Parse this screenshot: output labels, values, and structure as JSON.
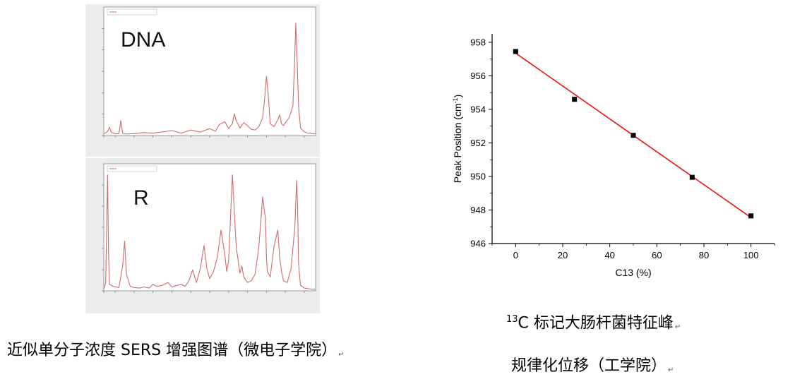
{
  "chart_data": [
    {
      "type": "line",
      "panel": "spectrum-dna",
      "annotation": "DNA",
      "color": "#d06a6a",
      "xlim": [
        640,
        1760
      ],
      "x_ticks": [
        640,
        700,
        800,
        900,
        1000,
        1100,
        1200,
        1300,
        1400,
        1500,
        1600,
        1700
      ],
      "ylim": [
        0,
        65000
      ],
      "series": [
        {
          "x": [
            640,
            660,
            670,
            680,
            700,
            720,
            730,
            740,
            760,
            800,
            850,
            900,
            950,
            1000,
            1050,
            1100,
            1150,
            1200,
            1230,
            1250,
            1280,
            1300,
            1320,
            1330,
            1340,
            1360,
            1380,
            1400,
            1420,
            1440,
            1460,
            1480,
            1490,
            1500,
            1510,
            1520,
            1540,
            1560,
            1570,
            1580,
            1590,
            1600,
            1620,
            1640,
            1650,
            1655,
            1660,
            1670,
            1680,
            1700,
            1720,
            1740,
            1760
          ],
          "y": [
            800,
            2000,
            4200,
            1600,
            900,
            1000,
            7500,
            1100,
            800,
            900,
            1500,
            1200,
            1800,
            2500,
            1200,
            2800,
            1800,
            3500,
            2200,
            5500,
            7000,
            3500,
            6000,
            11000,
            7500,
            3800,
            6500,
            5000,
            3200,
            2800,
            4500,
            9000,
            18000,
            30000,
            20000,
            6000,
            4500,
            8000,
            10500,
            6000,
            5000,
            6500,
            9000,
            15000,
            40000,
            57000,
            45000,
            15000,
            4000,
            1800,
            1200,
            1000,
            900
          ]
        }
      ]
    },
    {
      "type": "line",
      "panel": "spectrum-r",
      "annotation": "R",
      "color": "#d06a6a",
      "xlim": [
        640,
        1760
      ],
      "x_ticks": [
        640,
        700,
        800,
        900,
        1000,
        1100,
        1200,
        1300,
        1400,
        1500,
        1600,
        1700
      ],
      "ylim": [
        0,
        23000
      ],
      "series": [
        {
          "x": [
            640,
            650,
            655,
            660,
            665,
            670,
            690,
            720,
            740,
            750,
            760,
            780,
            800,
            830,
            850,
            880,
            900,
            920,
            950,
            980,
            1000,
            1050,
            1070,
            1090,
            1110,
            1130,
            1150,
            1170,
            1185,
            1200,
            1220,
            1240,
            1260,
            1280,
            1290,
            1300,
            1320,
            1340,
            1360,
            1370,
            1380,
            1390,
            1400,
            1420,
            1440,
            1460,
            1480,
            1495,
            1500,
            1505,
            1520,
            1540,
            1560,
            1570,
            1580,
            1590,
            1610,
            1630,
            1650,
            1660,
            1665,
            1670,
            1680,
            1700,
            1720,
            1740,
            1760
          ],
          "y": [
            300,
            1500,
            11000,
            21000,
            7000,
            1200,
            800,
            600,
            4500,
            9000,
            3000,
            800,
            600,
            500,
            700,
            500,
            1200,
            800,
            1000,
            1500,
            700,
            1200,
            800,
            1800,
            3800,
            1500,
            4000,
            8200,
            4000,
            2200,
            3500,
            6000,
            11000,
            6500,
            3500,
            5500,
            21000,
            8000,
            3200,
            4500,
            2500,
            2000,
            1500,
            1800,
            3000,
            8000,
            17000,
            13000,
            6000,
            3500,
            2500,
            8000,
            11000,
            6000,
            3500,
            1800,
            1500,
            4000,
            11500,
            20000,
            15000,
            5000,
            1000,
            500,
            400,
            300,
            300
          ]
        }
      ]
    },
    {
      "type": "scatter",
      "panel": "c13-shift",
      "xlabel": "C13 (%)",
      "ylabel_main": "Peak Position (cm",
      "ylabel_sup": "-1",
      "ylabel_close": ")",
      "xlim": [
        -10,
        110
      ],
      "ylim": [
        946,
        958.5
      ],
      "x_ticks": [
        0,
        20,
        40,
        60,
        80,
        100
      ],
      "y_ticks": [
        946,
        948,
        950,
        952,
        954,
        956,
        958
      ],
      "marker_color": "#000000",
      "fit_color": "#ee1111",
      "points": {
        "x": [
          0,
          25,
          50,
          75,
          100
        ],
        "y": [
          957.45,
          954.6,
          952.45,
          949.95,
          947.65
        ]
      },
      "fit": {
        "x": [
          0,
          100
        ],
        "y": [
          957.35,
          947.55
        ]
      }
    }
  ],
  "annotations": {
    "dna": "DNA",
    "r": "R"
  },
  "captions": {
    "left": "近似单分子浓度 SERS 增强图谱（微电子学院）",
    "right_sup": "13",
    "right_line1": "C 标记大肠杆菌特征峰",
    "right_line2": "规律化位移（工学院）",
    "return_mark": "↵"
  }
}
